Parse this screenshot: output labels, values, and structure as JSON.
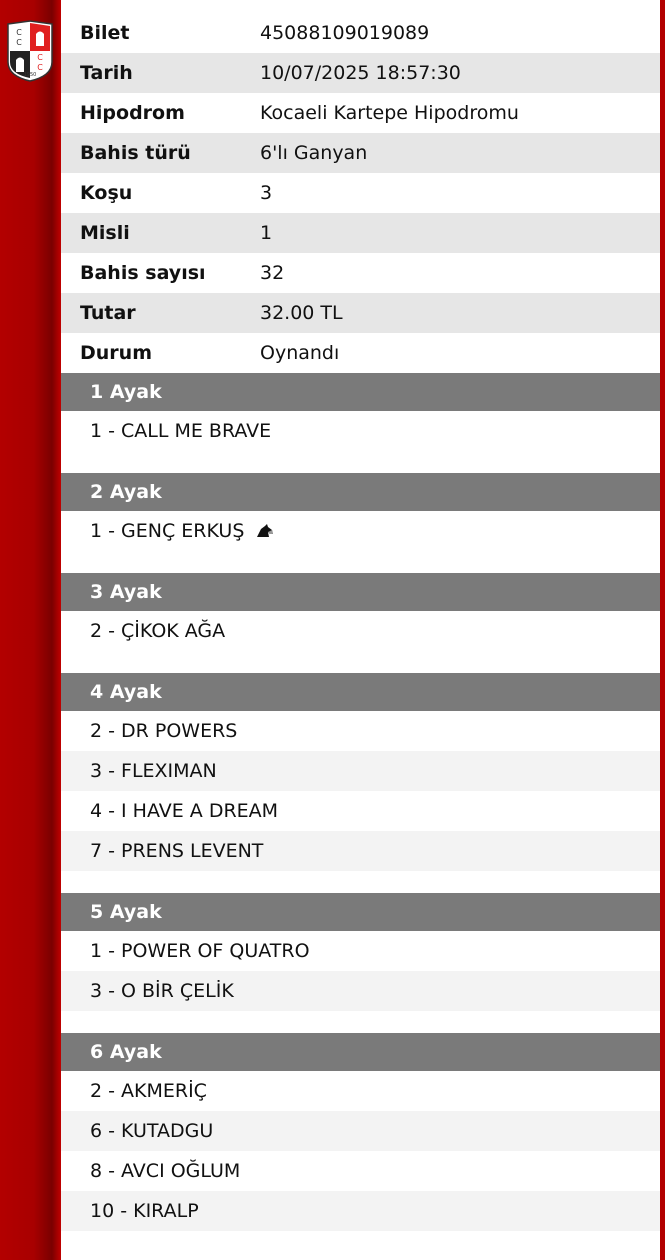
{
  "logo": {
    "text": "CC 1950"
  },
  "info": [
    {
      "label": "Bilet",
      "value": "45088109019089"
    },
    {
      "label": "Tarih",
      "value": "10/07/2025 18:57:30"
    },
    {
      "label": "Hipodrom",
      "value": "Kocaeli Kartepe Hipodromu"
    },
    {
      "label": "Bahis türü",
      "value": "6'lı Ganyan"
    },
    {
      "label": "Koşu",
      "value": "3"
    },
    {
      "label": "Misli",
      "value": "1"
    },
    {
      "label": "Bahis sayısı",
      "value": "32"
    },
    {
      "label": "Tutar",
      "value": "32.00 TL"
    },
    {
      "label": "Durum",
      "value": "Oynandı"
    }
  ],
  "legs": [
    {
      "title": "1 Ayak",
      "horses": [
        {
          "name": "1 - CALL ME BRAVE"
        }
      ]
    },
    {
      "title": "2 Ayak",
      "horses": [
        {
          "name": "1 - GENÇ ERKUŞ",
          "icon": "horse-head-icon"
        }
      ]
    },
    {
      "title": "3 Ayak",
      "horses": [
        {
          "name": "2 - ÇİKOK AĞA"
        }
      ]
    },
    {
      "title": "4 Ayak",
      "horses": [
        {
          "name": "2 - DR POWERS"
        },
        {
          "name": "3 - FLEXIMAN"
        },
        {
          "name": "4 - I HAVE A DREAM"
        },
        {
          "name": "7 - PRENS LEVENT"
        }
      ]
    },
    {
      "title": "5 Ayak",
      "horses": [
        {
          "name": "1 - POWER OF QUATRO"
        },
        {
          "name": "3 - O BİR ÇELİK"
        }
      ]
    },
    {
      "title": "6 Ayak",
      "horses": [
        {
          "name": "2 - AKMERİÇ"
        },
        {
          "name": "6 - KUTADGU"
        },
        {
          "name": "8 - AVCI OĞLUM"
        },
        {
          "name": "10 - KIRALP"
        }
      ]
    }
  ],
  "colors": {
    "brand": "#b30000",
    "header": "#7a7a7a",
    "stripe": "#e6e6e6"
  }
}
